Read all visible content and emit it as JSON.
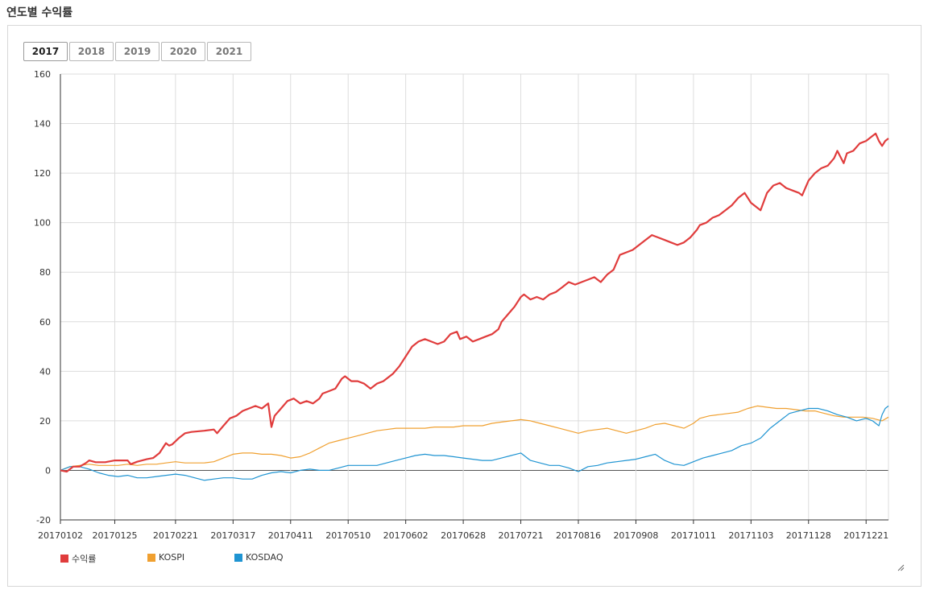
{
  "page": {
    "title": "연도별 수익률"
  },
  "year_tabs": [
    {
      "label": "2017",
      "active": true
    },
    {
      "label": "2018",
      "active": false
    },
    {
      "label": "2019",
      "active": false
    },
    {
      "label": "2020",
      "active": false
    },
    {
      "label": "2021",
      "active": false
    }
  ],
  "chart_data": {
    "type": "line",
    "title": "",
    "xlabel": "",
    "ylabel": "",
    "ylim": [
      -20,
      160
    ],
    "yticks": [
      -20,
      0,
      20,
      40,
      60,
      80,
      100,
      120,
      140,
      160
    ],
    "x_ticks": [
      "20170102",
      "20170125",
      "20170221",
      "20170317",
      "20170411",
      "20170510",
      "20170602",
      "20170628",
      "20170721",
      "20170816",
      "20170908",
      "20171011",
      "20171103",
      "20171128",
      "20171221"
    ],
    "x_tick_index": [
      0,
      17,
      36,
      54,
      72,
      90,
      108,
      126,
      144,
      162,
      180,
      198,
      216,
      234,
      252
    ],
    "num_points": 259,
    "grid": true,
    "legend_position": "bottom-left",
    "series": [
      {
        "name": "수익률",
        "color": "#e03c3c",
        "points": [
          [
            0,
            0
          ],
          [
            2,
            -0.5
          ],
          [
            4,
            1.5
          ],
          [
            6,
            1.5
          ],
          [
            8,
            3
          ],
          [
            9,
            4
          ],
          [
            11,
            3.3
          ],
          [
            14,
            3.3
          ],
          [
            17,
            4
          ],
          [
            21,
            4
          ],
          [
            22,
            2.5
          ],
          [
            24,
            3.5
          ],
          [
            27,
            4.5
          ],
          [
            29,
            5
          ],
          [
            31,
            7
          ],
          [
            33,
            11
          ],
          [
            34,
            10
          ],
          [
            35,
            10.5
          ],
          [
            37,
            13
          ],
          [
            39,
            15
          ],
          [
            41,
            15.5
          ],
          [
            45,
            16
          ],
          [
            48,
            16.5
          ],
          [
            49,
            15
          ],
          [
            51,
            18
          ],
          [
            53,
            21
          ],
          [
            55,
            22
          ],
          [
            57,
            24
          ],
          [
            59,
            25
          ],
          [
            61,
            26
          ],
          [
            63,
            25
          ],
          [
            65,
            27
          ],
          [
            66,
            17.5
          ],
          [
            67,
            22
          ],
          [
            69,
            25
          ],
          [
            71,
            28
          ],
          [
            73,
            29
          ],
          [
            75,
            27
          ],
          [
            77,
            28
          ],
          [
            79,
            27
          ],
          [
            81,
            29
          ],
          [
            82,
            31
          ],
          [
            84,
            32
          ],
          [
            86,
            33
          ],
          [
            88,
            37
          ],
          [
            89,
            38
          ],
          [
            91,
            36
          ],
          [
            93,
            36
          ],
          [
            95,
            35
          ],
          [
            97,
            33
          ],
          [
            99,
            35
          ],
          [
            101,
            36
          ],
          [
            103,
            38
          ],
          [
            104,
            39
          ],
          [
            106,
            42
          ],
          [
            108,
            46
          ],
          [
            110,
            50
          ],
          [
            112,
            52
          ],
          [
            114,
            53
          ],
          [
            116,
            52
          ],
          [
            118,
            51
          ],
          [
            120,
            52
          ],
          [
            122,
            55
          ],
          [
            124,
            56
          ],
          [
            125,
            53
          ],
          [
            127,
            54
          ],
          [
            129,
            52
          ],
          [
            131,
            53
          ],
          [
            133,
            54
          ],
          [
            135,
            55
          ],
          [
            137,
            57
          ],
          [
            138,
            60
          ],
          [
            140,
            63
          ],
          [
            142,
            66
          ],
          [
            144,
            70
          ],
          [
            145,
            71
          ],
          [
            147,
            69
          ],
          [
            149,
            70
          ],
          [
            151,
            69
          ],
          [
            153,
            71
          ],
          [
            155,
            72
          ],
          [
            157,
            74
          ],
          [
            159,
            76
          ],
          [
            161,
            75
          ],
          [
            163,
            76
          ],
          [
            165,
            77
          ],
          [
            167,
            78
          ],
          [
            169,
            76
          ],
          [
            171,
            79
          ],
          [
            173,
            81
          ],
          [
            175,
            87
          ],
          [
            177,
            88
          ],
          [
            179,
            89
          ],
          [
            181,
            91
          ],
          [
            183,
            93
          ],
          [
            185,
            95
          ],
          [
            187,
            94
          ],
          [
            189,
            93
          ],
          [
            191,
            92
          ],
          [
            193,
            91
          ],
          [
            195,
            92
          ],
          [
            197,
            94
          ],
          [
            199,
            97
          ],
          [
            200,
            99
          ],
          [
            202,
            100
          ],
          [
            204,
            102
          ],
          [
            206,
            103
          ],
          [
            208,
            105
          ],
          [
            210,
            107
          ],
          [
            212,
            110
          ],
          [
            214,
            112
          ],
          [
            216,
            108
          ],
          [
            218,
            106
          ],
          [
            219,
            105
          ],
          [
            221,
            112
          ],
          [
            223,
            115
          ],
          [
            225,
            116
          ],
          [
            227,
            114
          ],
          [
            229,
            113
          ],
          [
            231,
            112
          ],
          [
            232,
            111
          ],
          [
            234,
            117
          ],
          [
            236,
            120
          ],
          [
            238,
            122
          ],
          [
            240,
            123
          ],
          [
            242,
            126
          ],
          [
            243,
            129
          ],
          [
            245,
            124
          ],
          [
            246,
            128
          ],
          [
            248,
            129
          ],
          [
            250,
            132
          ],
          [
            252,
            133
          ],
          [
            254,
            135
          ],
          [
            255,
            136
          ],
          [
            256,
            133
          ],
          [
            257,
            131
          ],
          [
            258,
            133
          ],
          [
            259,
            134
          ]
        ]
      },
      {
        "name": "KOSPI",
        "color": "#f0a030",
        "points": [
          [
            0,
            0
          ],
          [
            3,
            1.5
          ],
          [
            6,
            2
          ],
          [
            9,
            2.5
          ],
          [
            12,
            2
          ],
          [
            15,
            2
          ],
          [
            18,
            2
          ],
          [
            21,
            2.5
          ],
          [
            24,
            2
          ],
          [
            27,
            2.5
          ],
          [
            30,
            2.5
          ],
          [
            33,
            3
          ],
          [
            36,
            3.5
          ],
          [
            39,
            3
          ],
          [
            42,
            3
          ],
          [
            45,
            3
          ],
          [
            48,
            3.5
          ],
          [
            51,
            5
          ],
          [
            54,
            6.5
          ],
          [
            57,
            7
          ],
          [
            60,
            7
          ],
          [
            63,
            6.5
          ],
          [
            66,
            6.5
          ],
          [
            69,
            6
          ],
          [
            72,
            5
          ],
          [
            75,
            5.5
          ],
          [
            78,
            7
          ],
          [
            81,
            9
          ],
          [
            84,
            11
          ],
          [
            87,
            12
          ],
          [
            90,
            13
          ],
          [
            93,
            14
          ],
          [
            96,
            15
          ],
          [
            99,
            16
          ],
          [
            102,
            16.5
          ],
          [
            105,
            17
          ],
          [
            108,
            17
          ],
          [
            111,
            17
          ],
          [
            114,
            17
          ],
          [
            117,
            17.5
          ],
          [
            120,
            17.5
          ],
          [
            123,
            17.5
          ],
          [
            126,
            18
          ],
          [
            129,
            18
          ],
          [
            132,
            18
          ],
          [
            135,
            19
          ],
          [
            138,
            19.5
          ],
          [
            141,
            20
          ],
          [
            144,
            20.5
          ],
          [
            147,
            20
          ],
          [
            150,
            19
          ],
          [
            153,
            18
          ],
          [
            156,
            17
          ],
          [
            159,
            16
          ],
          [
            162,
            15
          ],
          [
            165,
            16
          ],
          [
            168,
            16.5
          ],
          [
            171,
            17
          ],
          [
            174,
            16
          ],
          [
            177,
            15
          ],
          [
            180,
            16
          ],
          [
            183,
            17
          ],
          [
            186,
            18.5
          ],
          [
            189,
            19
          ],
          [
            192,
            18
          ],
          [
            195,
            17
          ],
          [
            198,
            19
          ],
          [
            200,
            21
          ],
          [
            203,
            22
          ],
          [
            206,
            22.5
          ],
          [
            209,
            23
          ],
          [
            212,
            23.5
          ],
          [
            215,
            25
          ],
          [
            218,
            26
          ],
          [
            221,
            25.5
          ],
          [
            224,
            25
          ],
          [
            227,
            25
          ],
          [
            230,
            24.5
          ],
          [
            233,
            24
          ],
          [
            236,
            24
          ],
          [
            239,
            23
          ],
          [
            242,
            22
          ],
          [
            245,
            21.5
          ],
          [
            248,
            21.5
          ],
          [
            251,
            21.5
          ],
          [
            254,
            21
          ],
          [
            257,
            20
          ],
          [
            259,
            21.5
          ]
        ]
      },
      {
        "name": "KOSDAQ",
        "color": "#1f94d2",
        "points": [
          [
            0,
            0
          ],
          [
            3,
            1.5
          ],
          [
            6,
            1.5
          ],
          [
            9,
            0.5
          ],
          [
            12,
            -1
          ],
          [
            15,
            -2
          ],
          [
            18,
            -2.5
          ],
          [
            21,
            -2
          ],
          [
            24,
            -3
          ],
          [
            27,
            -3
          ],
          [
            30,
            -2.5
          ],
          [
            33,
            -2
          ],
          [
            36,
            -1.5
          ],
          [
            39,
            -2
          ],
          [
            42,
            -3
          ],
          [
            45,
            -4
          ],
          [
            48,
            -3.5
          ],
          [
            51,
            -3
          ],
          [
            54,
            -3
          ],
          [
            57,
            -3.5
          ],
          [
            60,
            -3.5
          ],
          [
            63,
            -2
          ],
          [
            66,
            -1
          ],
          [
            69,
            -0.5
          ],
          [
            72,
            -1
          ],
          [
            75,
            0
          ],
          [
            78,
            0.5
          ],
          [
            81,
            0
          ],
          [
            84,
            0
          ],
          [
            87,
            1
          ],
          [
            90,
            2
          ],
          [
            93,
            2
          ],
          [
            96,
            2
          ],
          [
            99,
            2
          ],
          [
            102,
            3
          ],
          [
            105,
            4
          ],
          [
            108,
            5
          ],
          [
            111,
            6
          ],
          [
            114,
            6.5
          ],
          [
            117,
            6
          ],
          [
            120,
            6
          ],
          [
            123,
            5.5
          ],
          [
            126,
            5
          ],
          [
            129,
            4.5
          ],
          [
            132,
            4
          ],
          [
            135,
            4
          ],
          [
            138,
            5
          ],
          [
            141,
            6
          ],
          [
            144,
            7
          ],
          [
            147,
            4
          ],
          [
            150,
            3
          ],
          [
            153,
            2
          ],
          [
            156,
            2
          ],
          [
            159,
            1
          ],
          [
            162,
            -0.5
          ],
          [
            165,
            1.5
          ],
          [
            168,
            2
          ],
          [
            171,
            3
          ],
          [
            174,
            3.5
          ],
          [
            177,
            4
          ],
          [
            180,
            4.5
          ],
          [
            183,
            5.5
          ],
          [
            186,
            6.5
          ],
          [
            189,
            4
          ],
          [
            192,
            2.5
          ],
          [
            195,
            2
          ],
          [
            198,
            3.5
          ],
          [
            201,
            5
          ],
          [
            204,
            6
          ],
          [
            207,
            7
          ],
          [
            210,
            8
          ],
          [
            213,
            10
          ],
          [
            216,
            11
          ],
          [
            219,
            13
          ],
          [
            222,
            17
          ],
          [
            225,
            20
          ],
          [
            228,
            23
          ],
          [
            231,
            24
          ],
          [
            234,
            25
          ],
          [
            237,
            25
          ],
          [
            240,
            24
          ],
          [
            243,
            22.5
          ],
          [
            246,
            21.5
          ],
          [
            249,
            20
          ],
          [
            252,
            21
          ],
          [
            254,
            20
          ],
          [
            256,
            18
          ],
          [
            257,
            22.5
          ],
          [
            258,
            25
          ],
          [
            259,
            26
          ]
        ]
      }
    ]
  }
}
